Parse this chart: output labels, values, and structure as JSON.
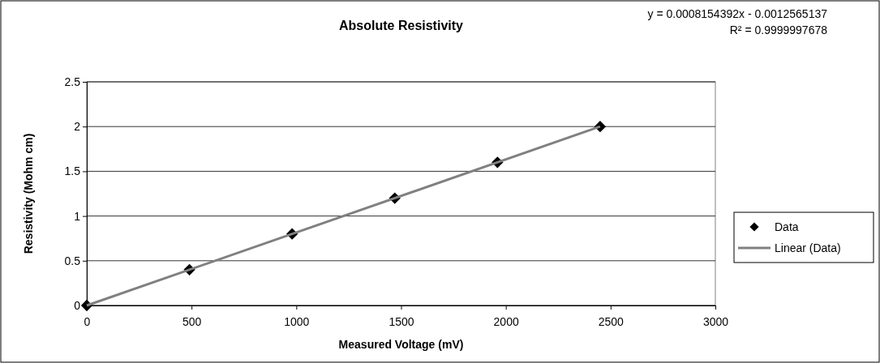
{
  "chart_data": {
    "type": "scatter",
    "title": "Absolute Resistivity",
    "xlabel": "Measured Voltage (mV)",
    "ylabel": "Resistivity (Mohm cm)",
    "annotations": [
      "y = 0.0008154392x - 0.0012565137",
      "R² = 0.9999997678"
    ],
    "x": [
      0,
      490,
      980,
      1470,
      1960,
      2450
    ],
    "series": [
      {
        "name": "Data",
        "type": "scatter",
        "color": "#000000",
        "marker": "diamond",
        "values": [
          0,
          0.4,
          0.8,
          1.2,
          1.6,
          2.0
        ]
      },
      {
        "name": "Linear (Data)",
        "type": "line",
        "color": "#808080",
        "marker": "none",
        "x": [
          0,
          2450
        ],
        "values": [
          0,
          2.0
        ]
      }
    ],
    "xlim": [
      0,
      3000
    ],
    "xticks": [
      0,
      500,
      1000,
      1500,
      2000,
      2500,
      3000
    ],
    "ylim": [
      0,
      2.5
    ],
    "yticks": [
      0,
      0.5,
      1,
      1.5,
      2,
      2.5
    ],
    "grid": "y",
    "legend": "right"
  }
}
